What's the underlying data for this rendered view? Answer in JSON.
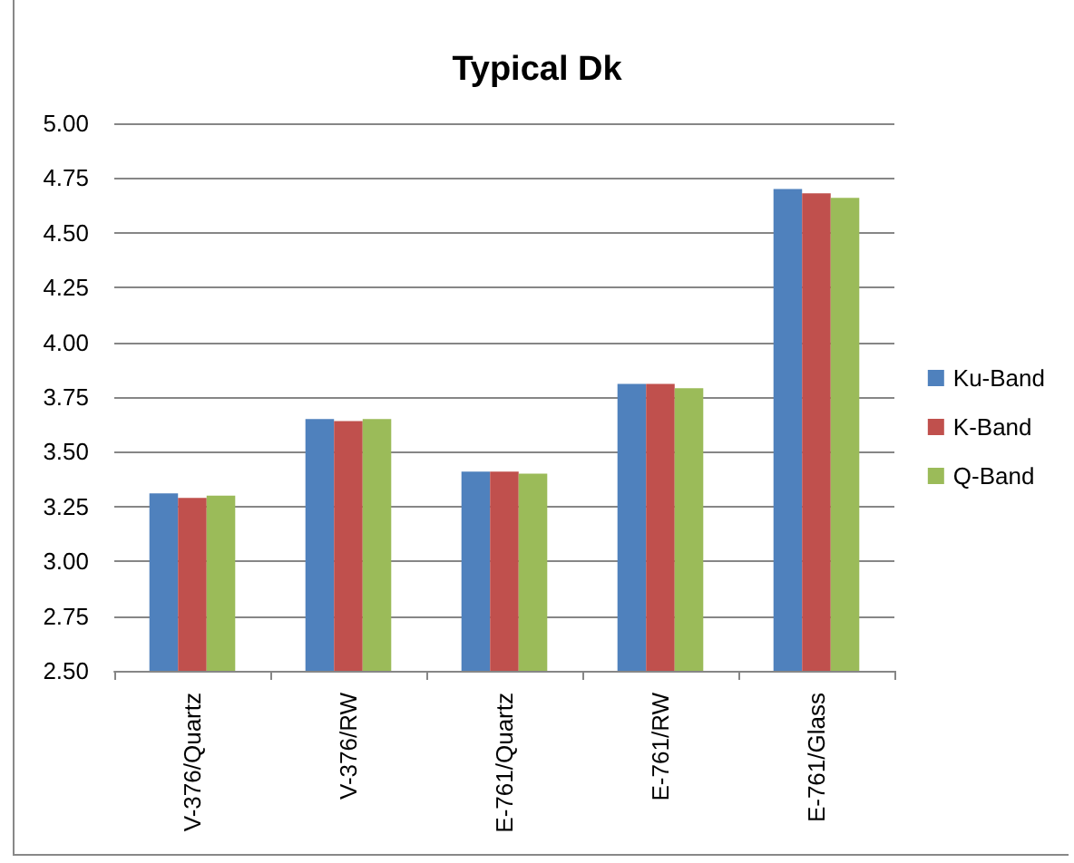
{
  "chart_data": {
    "type": "bar",
    "title": "Typical Dk",
    "categories": [
      "V-376/Quartz",
      "V-376/RW",
      "E-761/Quartz",
      "E-761/RW",
      "E-761/Glass"
    ],
    "series": [
      {
        "name": "Ku-Band",
        "color": "#4f81bd",
        "values": [
          3.31,
          3.65,
          3.41,
          3.81,
          4.7
        ]
      },
      {
        "name": "K-Band",
        "color": "#c0504d",
        "values": [
          3.29,
          3.64,
          3.41,
          3.81,
          4.68
        ]
      },
      {
        "name": "Q-Band",
        "color": "#9bbb59",
        "values": [
          3.3,
          3.65,
          3.4,
          3.79,
          4.66
        ]
      }
    ],
    "ylim": [
      2.5,
      5
    ],
    "yticks": [
      {
        "value": 2.5,
        "label": "2.50"
      },
      2.75,
      {
        "value": 3,
        "label": "3.00"
      },
      3.25,
      {
        "value": 3.5,
        "label": "3.50"
      },
      3.75,
      {
        "value": 4,
        "label": "4.00"
      },
      4.25,
      {
        "value": 4.5,
        "label": "4.50"
      },
      4.75,
      {
        "value": 5,
        "label": "5.00"
      }
    ],
    "grid": "y",
    "legend": "right"
  }
}
